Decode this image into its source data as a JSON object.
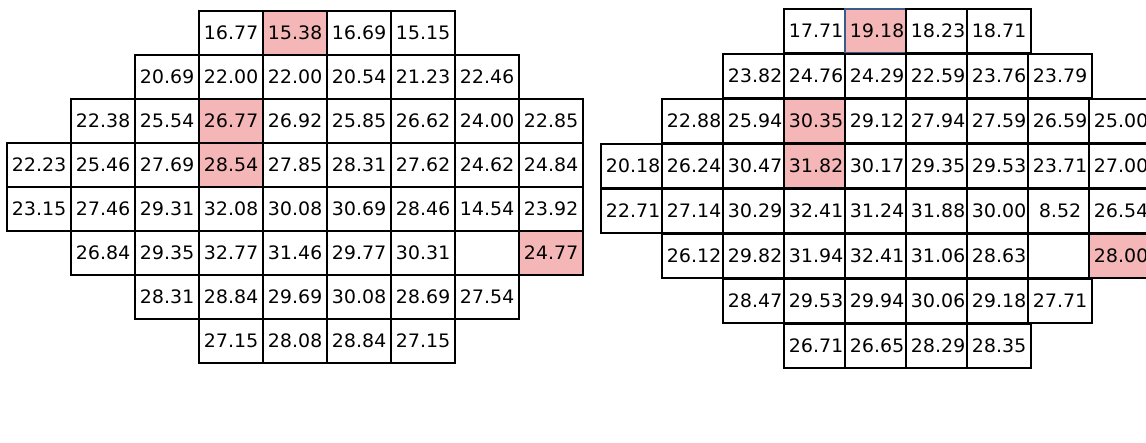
{
  "colors": {
    "highlight": "#f4b6b6",
    "selected_border": "#3b5b8c"
  },
  "left_grid": {
    "rows": [
      [
        "",
        "",
        "",
        "16.77",
        "15.38",
        "16.69",
        "15.15",
        "",
        ""
      ],
      [
        "",
        "",
        "20.69",
        "22.00",
        "22.00",
        "20.54",
        "21.23",
        "22.46",
        ""
      ],
      [
        "",
        "22.38",
        "25.54",
        "26.77",
        "26.92",
        "25.85",
        "26.62",
        "24.00",
        "22.85"
      ],
      [
        "22.23",
        "25.46",
        "27.69",
        "28.54",
        "27.85",
        "28.31",
        "27.62",
        "24.62",
        "24.84"
      ],
      [
        "23.15",
        "27.46",
        "29.31",
        "32.08",
        "30.08",
        "30.69",
        "28.46",
        "14.54",
        "23.92"
      ],
      [
        "",
        "26.84",
        "29.35",
        "32.77",
        "31.46",
        "29.77",
        "30.31",
        "",
        "24.77"
      ],
      [
        "",
        "",
        "28.31",
        "28.84",
        "29.69",
        "30.08",
        "28.69",
        "27.54",
        ""
      ],
      [
        "",
        "",
        "",
        "27.15",
        "28.08",
        "28.84",
        "27.15",
        "",
        ""
      ]
    ],
    "highlighted": [
      "0,4",
      "2,3",
      "3,3",
      "5,8"
    ],
    "blank_cells": [
      "5,7"
    ]
  },
  "right_grid": {
    "rows": [
      [
        "",
        "",
        "",
        "17.71",
        "19.18",
        "18.23",
        "18.71",
        "",
        ""
      ],
      [
        "",
        "",
        "23.82",
        "24.76",
        "24.29",
        "22.59",
        "23.76",
        "23.79",
        ""
      ],
      [
        "",
        "22.88",
        "25.94",
        "30.35",
        "29.12",
        "27.94",
        "27.59",
        "26.59",
        "25.00"
      ],
      [
        "20.18",
        "26.24",
        "30.47",
        "31.82",
        "30.17",
        "29.35",
        "29.53",
        "23.71",
        "27.00"
      ],
      [
        "22.71",
        "27.14",
        "30.29",
        "32.41",
        "31.24",
        "31.88",
        "30.00",
        "8.52",
        "26.54"
      ],
      [
        "",
        "26.12",
        "29.82",
        "31.94",
        "32.41",
        "31.06",
        "28.63",
        "",
        "28.00"
      ],
      [
        "",
        "",
        "28.47",
        "29.53",
        "29.94",
        "30.06",
        "29.18",
        "27.71",
        ""
      ],
      [
        "",
        "",
        "",
        "26.71",
        "26.65",
        "28.29",
        "28.35",
        "",
        ""
      ]
    ],
    "highlighted": [
      "0,4",
      "2,3",
      "3,3",
      "5,8"
    ],
    "selected": [
      "0,4"
    ],
    "blank_cells": [
      "5,7"
    ]
  }
}
